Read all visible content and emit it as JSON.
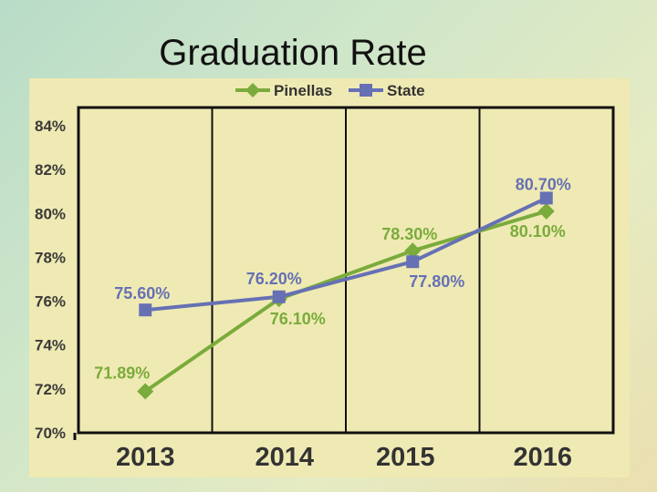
{
  "slide": {
    "title": "Graduation Rate"
  },
  "colors": {
    "pinellas": "#7aab3c",
    "state": "#6670b4",
    "frame": "#111111"
  },
  "chart_data": {
    "type": "line",
    "title": "Graduation Rate",
    "categories": [
      "2013",
      "2014",
      "2015",
      "2016"
    ],
    "ylim": [
      70,
      84
    ],
    "yticks": [
      70,
      72,
      74,
      76,
      78,
      80,
      82,
      84
    ],
    "ytick_labels": [
      "70%",
      "72%",
      "74%",
      "76%",
      "78%",
      "80%",
      "82%",
      "84%"
    ],
    "grid": "vertical-lines",
    "legend_position": "top-center",
    "series": [
      {
        "name": "Pinellas",
        "marker": "diamond",
        "values": [
          71.89,
          76.1,
          78.3,
          80.1
        ],
        "labels": [
          "71.89%",
          "76.10%",
          "78.30%",
          "80.10%"
        ]
      },
      {
        "name": "State",
        "marker": "square",
        "values": [
          75.6,
          76.2,
          77.8,
          80.7
        ],
        "labels": [
          "75.60%",
          "76.20%",
          "77.80%",
          "80.70%"
        ]
      }
    ]
  }
}
